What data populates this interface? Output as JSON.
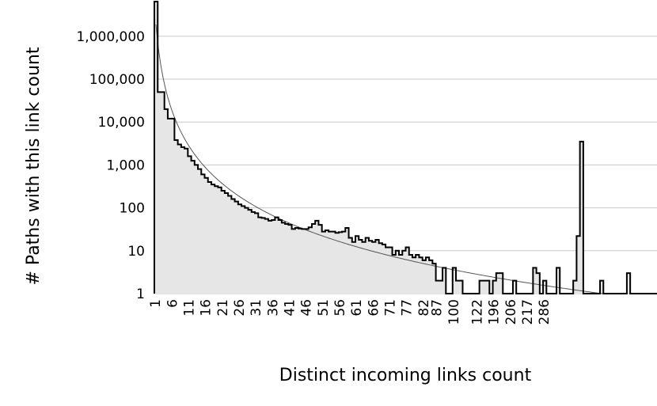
{
  "chart_data": {
    "type": "area",
    "xlabel": "Distinct incoming links count",
    "ylabel": "# Paths with this link count",
    "y_scale": "log",
    "ylim": [
      1,
      7000000
    ],
    "y_ticks": [
      {
        "value": 1,
        "label": "1"
      },
      {
        "value": 10,
        "label": "10"
      },
      {
        "value": 100,
        "label": "100"
      },
      {
        "value": 1000,
        "label": "1,000"
      },
      {
        "value": 10000,
        "label": "10,000"
      },
      {
        "value": 100000,
        "label": "100,000"
      },
      {
        "value": 1000000,
        "label": "1,000,000"
      }
    ],
    "x_tick_labels": [
      "1",
      "6",
      "11",
      "16",
      "21",
      "26",
      "31",
      "36",
      "41",
      "46",
      "51",
      "56",
      "61",
      "66",
      "71",
      "77",
      "82",
      "87",
      "100",
      "122",
      "196",
      "206",
      "217",
      "286"
    ],
    "x_tick_positions": [
      0,
      5,
      10,
      15,
      20,
      25,
      30,
      35,
      40,
      45,
      50,
      55,
      60,
      65,
      70,
      75,
      80,
      84,
      89,
      96,
      101,
      106,
      111,
      116
    ],
    "grid": true,
    "legend": "none",
    "fill_color": "#e6e6e6",
    "line_color": "#000000",
    "trend_color": "#555555",
    "series": [
      {
        "name": "",
        "values": [
          6500000,
          50000,
          50000,
          20000,
          12000,
          12000,
          3800,
          3000,
          2600,
          2400,
          1600,
          1250,
          1000,
          800,
          600,
          500,
          400,
          350,
          320,
          300,
          250,
          220,
          190,
          160,
          140,
          120,
          110,
          100,
          90,
          80,
          75,
          60,
          58,
          55,
          50,
          52,
          60,
          52,
          45,
          42,
          40,
          32,
          34,
          33,
          32,
          32,
          35,
          42,
          50,
          40,
          28,
          30,
          28,
          28,
          26,
          27,
          28,
          34,
          20,
          16,
          22,
          18,
          16,
          20,
          17,
          16,
          18,
          15,
          14,
          12,
          12,
          8,
          10,
          8,
          10,
          12,
          8,
          7,
          8,
          7,
          6,
          7,
          6,
          5,
          2,
          2,
          4,
          1,
          1,
          4,
          2,
          2,
          1,
          1,
          1,
          1,
          1,
          2,
          2,
          2,
          1,
          2,
          3,
          3,
          1,
          1,
          1,
          2,
          1,
          1,
          1,
          1,
          1,
          4,
          3,
          1,
          2,
          1,
          1,
          1,
          4,
          1,
          1,
          1,
          1,
          2,
          22,
          3500,
          1,
          1,
          1,
          1,
          1,
          2,
          1,
          1,
          1,
          1,
          1,
          1,
          1,
          3,
          1,
          1,
          1,
          1,
          1,
          1,
          1,
          1
        ],
        "note_zero_floor": "values of 1 rest on the baseline"
      }
    ]
  }
}
